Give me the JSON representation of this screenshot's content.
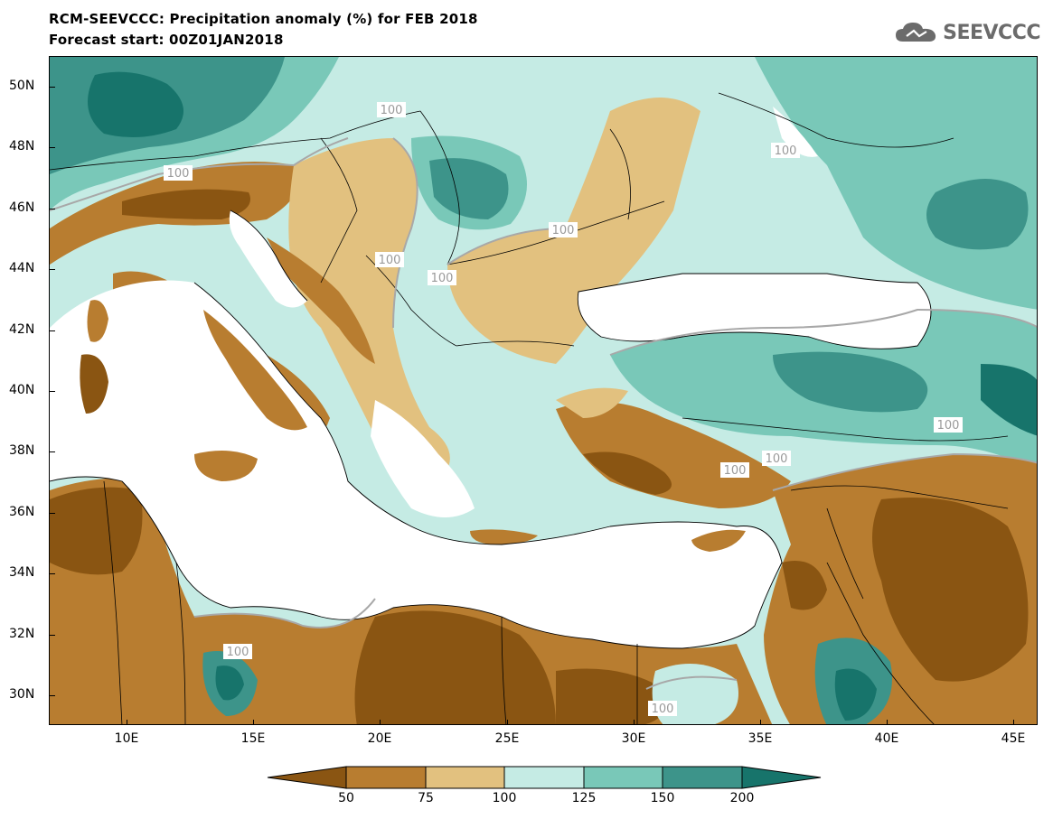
{
  "header": {
    "title": "RCM-SEEVCCC: Precipitation anomaly (%) for FEB 2018",
    "subtitle": "Forecast start: 00Z01JAN2018"
  },
  "logo": {
    "text": "SEEVCCC",
    "icon": "cloud-icon"
  },
  "axes": {
    "lat_labels": [
      "50N",
      "48N",
      "46N",
      "44N",
      "42N",
      "40N",
      "38N",
      "36N",
      "34N",
      "32N",
      "30N"
    ],
    "lon_labels": [
      "10E",
      "15E",
      "20E",
      "25E",
      "30E",
      "35E",
      "40E",
      "45E"
    ]
  },
  "contour_labels": [
    "100",
    "100",
    "100",
    "100",
    "100",
    "100",
    "100",
    "100",
    "100",
    "100",
    "100"
  ],
  "colorbar": {
    "labels": [
      "50",
      "75",
      "100",
      "125",
      "150",
      "200"
    ],
    "colors": [
      "#8a5512",
      "#b87d30",
      "#e2c17f",
      "#c5ebe4",
      "#79c8b8",
      "#3d948a",
      "#17746b"
    ]
  },
  "palette": {
    "sea": "#ffffff",
    "dry_strong": "#8a5512",
    "dry": "#b87d30",
    "dry_light": "#e2c17f",
    "wet_light": "#c5ebe4",
    "wet": "#79c8b8",
    "wet_strong": "#3d948a",
    "wet_extreme": "#17746b"
  }
}
